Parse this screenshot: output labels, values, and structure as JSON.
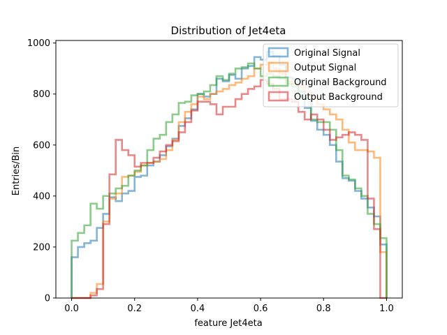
{
  "chart_data": {
    "type": "histogram",
    "title": "Distribution of Jet4eta",
    "xlabel": "feature Jet4eta",
    "ylabel": "Entries/Bin",
    "xlim": [
      -0.05,
      1.05
    ],
    "ylim": [
      0,
      1010
    ],
    "xticks": [
      0.0,
      0.2,
      0.4,
      0.6,
      0.8,
      1.0
    ],
    "xtick_labels": [
      "0.0",
      "0.2",
      "0.4",
      "0.6",
      "0.8",
      "1.0"
    ],
    "yticks": [
      0,
      200,
      400,
      600,
      800,
      1000
    ],
    "ytick_labels": [
      "0",
      "200",
      "400",
      "600",
      "800",
      "1000"
    ],
    "bins": {
      "start": 0.0,
      "end": 1.0,
      "count": 50
    },
    "legend_position": "top-right",
    "series": [
      {
        "name": "Original Signal",
        "color": "#1f77b4",
        "values": [
          160,
          200,
          215,
          225,
          275,
          330,
          395,
          380,
          410,
          420,
          475,
          480,
          520,
          535,
          560,
          595,
          625,
          675,
          705,
          740,
          800,
          790,
          800,
          860,
          850,
          875,
          860,
          900,
          910,
          945,
          935,
          965,
          950,
          915,
          865,
          860,
          810,
          745,
          695,
          660,
          640,
          600,
          535,
          470,
          460,
          420,
          390,
          355,
          320,
          210
        ]
      },
      {
        "name": "Output Signal",
        "color": "#ff7f0e",
        "values": [
          0,
          0,
          0,
          20,
          55,
          300,
          390,
          410,
          475,
          480,
          495,
          520,
          530,
          535,
          545,
          580,
          620,
          690,
          730,
          760,
          790,
          780,
          800,
          810,
          820,
          835,
          845,
          860,
          870,
          900,
          915,
          925,
          900,
          880,
          850,
          840,
          830,
          810,
          790,
          760,
          740,
          720,
          700,
          660,
          610,
          580,
          580,
          575,
          550,
          180
        ]
      },
      {
        "name": "Original Background",
        "color": "#2ca02c",
        "values": [
          225,
          255,
          285,
          370,
          350,
          400,
          410,
          430,
          440,
          480,
          500,
          520,
          580,
          625,
          640,
          690,
          720,
          765,
          770,
          795,
          800,
          810,
          835,
          870,
          855,
          880,
          900,
          905,
          920,
          900,
          870,
          880,
          870,
          860,
          840,
          830,
          790,
          780,
          700,
          690,
          690,
          660,
          580,
          480,
          465,
          430,
          400,
          330,
          290,
          235
        ]
      },
      {
        "name": "Output Background",
        "color": "#d62728",
        "values": [
          0,
          0,
          0,
          10,
          35,
          290,
          485,
          620,
          580,
          560,
          515,
          530,
          530,
          550,
          575,
          600,
          615,
          650,
          690,
          735,
          770,
          770,
          760,
          720,
          750,
          750,
          780,
          800,
          820,
          830,
          855,
          840,
          820,
          780,
          780,
          770,
          730,
          700,
          720,
          700,
          660,
          620,
          630,
          640,
          650,
          640,
          620,
          390,
          270,
          0
        ]
      }
    ],
    "legend": [
      "Original Signal",
      "Output Signal",
      "Original Background",
      "Output Background"
    ]
  }
}
